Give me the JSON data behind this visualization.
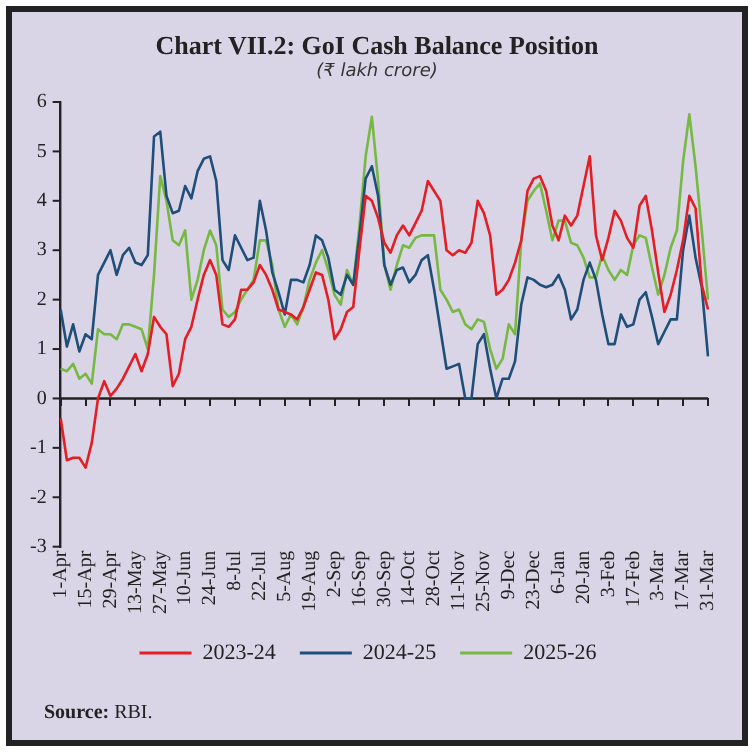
{
  "chart_data": {
    "type": "line",
    "title": "Chart VII.2: GoI Cash Balance Position",
    "subtitle": "(₹ lakh crore)",
    "categories": [
      "1-Apr",
      null,
      null,
      null,
      "15-Apr",
      null,
      null,
      null,
      "29-Apr",
      null,
      null,
      null,
      "13-May",
      null,
      null,
      null,
      "27-May",
      null,
      null,
      null,
      "10-Jun",
      null,
      null,
      null,
      "24-Jun",
      null,
      null,
      null,
      "8-Jul",
      null,
      null,
      null,
      "22-Jul",
      null,
      null,
      null,
      "5-Aug",
      null,
      null,
      null,
      "19-Aug",
      null,
      null,
      null,
      "2-Sep",
      null,
      null,
      null,
      "16-Sep",
      null,
      null,
      null,
      "30-Sep",
      null,
      null,
      null,
      "14-Oct",
      null,
      null,
      null,
      "28-Oct",
      null,
      null,
      null,
      "11-Nov",
      null,
      null,
      null,
      "25-Nov",
      null,
      null,
      null,
      "9-Dec",
      null,
      null,
      null,
      "23-Dec",
      null,
      null,
      null,
      "6-Jan",
      null,
      null,
      null,
      "20-Jan",
      null,
      null,
      null,
      "3-Feb",
      null,
      null,
      null,
      "17-Feb",
      null,
      null,
      null,
      "3-Mar",
      null,
      null,
      null,
      "17-Mar",
      null,
      null,
      null,
      "31-Mar"
    ],
    "ylim": [
      -3,
      6
    ],
    "yticks": [
      -3,
      -2,
      -1,
      0,
      1,
      2,
      3,
      4,
      5,
      6
    ],
    "grid": false,
    "legend": "bottom",
    "marker": "none",
    "line_style": "solid",
    "annotations": [
      "Source: RBI."
    ],
    "ref_lines": [
      {
        "axis": "y",
        "value": 0,
        "color": "#222222"
      }
    ],
    "series": [
      {
        "name": "2023-24",
        "color": "#e31e24",
        "values": [
          -0.4,
          -1.25,
          -1.2,
          -1.2,
          -1.4,
          -0.9,
          0,
          0.35,
          0.05,
          0.2,
          0.4,
          0.65,
          0.9,
          0.55,
          0.9,
          1.65,
          1.45,
          1.3,
          0.25,
          0.5,
          1.2,
          1.45,
          2.0,
          2.5,
          2.8,
          2.5,
          1.5,
          1.45,
          1.6,
          2.2,
          2.2,
          2.35,
          2.7,
          2.5,
          2.2,
          1.8,
          1.75,
          1.7,
          1.6,
          1.85,
          2.2,
          2.55,
          2.5,
          2.0,
          1.2,
          1.4,
          1.75,
          1.85,
          3.0,
          4.1,
          4.0,
          3.65,
          3.15,
          2.95,
          3.3,
          3.5,
          3.3,
          3.55,
          3.8,
          4.4,
          4.2,
          4.0,
          3.0,
          2.9,
          3.0,
          2.95,
          3.15,
          4.0,
          3.75,
          3.3,
          2.1,
          2.2,
          2.4,
          2.75,
          3.2,
          4.2,
          4.45,
          4.5,
          4.2,
          3.5,
          3.2,
          3.7,
          3.5,
          3.7,
          4.3,
          4.9,
          3.3,
          2.8,
          3.25,
          3.8,
          3.6,
          3.25,
          3.05,
          3.9,
          4.1,
          3.4,
          2.55,
          1.75,
          2.1,
          2.6,
          3.2,
          4.1,
          3.85,
          2.3,
          1.8
        ]
      },
      {
        "name": "2024-25",
        "color": "#1f4e79",
        "values": [
          1.8,
          1.05,
          1.5,
          0.95,
          1.3,
          1.2,
          2.5,
          2.75,
          3.0,
          2.5,
          2.9,
          3.05,
          2.75,
          2.7,
          2.9,
          5.3,
          5.4,
          4.1,
          3.75,
          3.8,
          4.3,
          4.05,
          4.6,
          4.85,
          4.9,
          4.4,
          2.8,
          2.6,
          3.3,
          3.05,
          2.8,
          2.85,
          4.0,
          3.4,
          2.55,
          2.15,
          1.7,
          2.4,
          2.4,
          2.35,
          2.7,
          3.3,
          3.2,
          2.85,
          2.2,
          2.1,
          2.5,
          2.3,
          3.3,
          4.45,
          4.7,
          4.1,
          2.7,
          2.3,
          2.6,
          2.65,
          2.35,
          2.5,
          2.8,
          2.9,
          2.2,
          1.4,
          0.6,
          0.65,
          0.7,
          0.0,
          0.0,
          1.1,
          1.3,
          0.6,
          0.0,
          0.4,
          0.4,
          0.75,
          1.9,
          2.45,
          2.4,
          2.3,
          2.25,
          2.3,
          2.5,
          2.2,
          1.6,
          1.8,
          2.4,
          2.75,
          2.4,
          1.7,
          1.1,
          1.1,
          1.7,
          1.45,
          1.5,
          2.0,
          2.15,
          1.65,
          1.1,
          1.35,
          1.6,
          1.6,
          3.0,
          3.7,
          2.85,
          2.25,
          0.85
        ]
      },
      {
        "name": "2025-26",
        "color": "#77b843",
        "values": [
          0.6,
          0.55,
          0.7,
          0.4,
          0.5,
          0.3,
          1.4,
          1.3,
          1.3,
          1.2,
          1.5,
          1.5,
          1.45,
          1.4,
          1.0,
          2.5,
          4.5,
          4.0,
          3.2,
          3.1,
          3.4,
          2.0,
          2.4,
          3.0,
          3.4,
          3.1,
          1.8,
          1.65,
          1.75,
          2.0,
          2.2,
          2.4,
          3.2,
          3.2,
          2.7,
          1.8,
          1.45,
          1.7,
          1.5,
          1.85,
          2.4,
          2.75,
          3.0,
          2.6,
          2.1,
          1.9,
          2.6,
          2.3,
          3.5,
          4.9,
          5.7,
          4.4,
          2.7,
          2.2,
          2.7,
          3.1,
          3.05,
          3.25,
          3.3,
          3.3,
          3.3,
          2.2,
          2.0,
          1.75,
          1.8,
          1.5,
          1.4,
          1.6,
          1.55,
          1.0,
          0.6,
          0.8,
          1.5,
          1.3,
          3.2,
          4.0,
          4.2,
          4.35,
          3.8,
          3.2,
          3.6,
          3.6,
          3.15,
          3.1,
          2.85,
          2.45,
          2.45,
          2.9,
          2.6,
          2.4,
          2.6,
          2.5,
          3.1,
          3.3,
          3.25,
          2.65,
          2.1,
          2.5,
          3.05,
          3.4,
          4.8,
          5.75,
          4.7,
          3.4,
          2.0
        ]
      }
    ]
  }
}
